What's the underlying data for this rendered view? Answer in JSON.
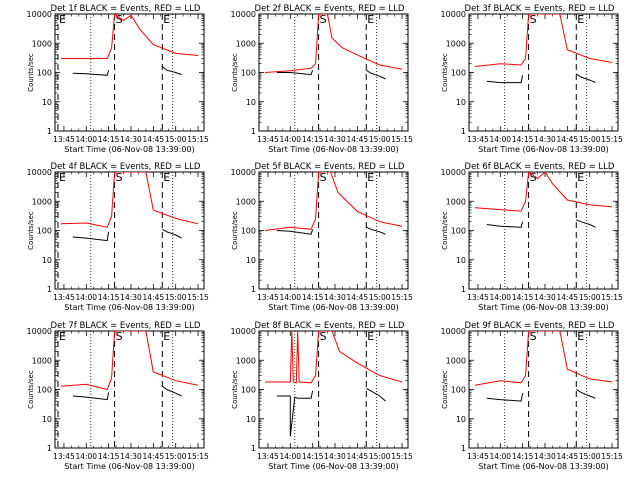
{
  "figure": {
    "background": "#ffffff",
    "event_color": "#000000",
    "lld_color": "#ff0000"
  },
  "chart_data": [
    {
      "type": "line",
      "title": "Det 1f BLACK = Events, RED = LLD",
      "xlabel": "Start Time (06-Nov-08 13:39:00)",
      "ylabel": "Counts/sec",
      "x_ticks": [
        "13:45",
        "14:00",
        "14:15",
        "14:30",
        "14:45",
        "15:00",
        "15:15"
      ],
      "y_ticks": [
        "1",
        "10",
        "100",
        "1000",
        "10000"
      ],
      "ylim": [
        1,
        10000
      ],
      "yscale": "log",
      "markers": [
        {
          "label": "E",
          "x": "13:41",
          "style": "dashed"
        },
        {
          "label": "S",
          "x": "14:19",
          "style": "dashed"
        },
        {
          "label": "E",
          "x": "14:51",
          "style": "dashed"
        }
      ],
      "dotted_lines": [
        "14:03",
        "14:58"
      ],
      "series": [
        {
          "color": "red",
          "x": [
            "13:43",
            "14:00",
            "14:14",
            "14:17",
            "14:19",
            "14:25",
            "14:30",
            "14:36",
            "14:45",
            "15:00",
            "15:15"
          ],
          "values": [
            300,
            300,
            300,
            700,
            10000,
            6000,
            9000,
            3000,
            900,
            450,
            380
          ]
        },
        {
          "color": "black",
          "x": [
            "13:51",
            "14:00",
            "14:14",
            "14:15"
          ],
          "values": [
            95,
            90,
            80,
            120
          ]
        },
        {
          "color": "black",
          "x": [
            "14:51",
            "14:54",
            "15:00",
            "15:04"
          ],
          "values": [
            160,
            120,
            100,
            85
          ]
        }
      ]
    },
    {
      "type": "line",
      "title": "Det 2f BLACK = Events, RED = LLD",
      "xlabel": "Start Time (06-Nov-08 13:39:00)",
      "ylabel": "Counts/sec",
      "x_ticks": [
        "13:45",
        "14:00",
        "14:15",
        "14:30",
        "14:45",
        "15:00",
        "15:15"
      ],
      "y_ticks": [
        "1",
        "10",
        "100",
        "1000",
        "10000"
      ],
      "ylim": [
        1,
        10000
      ],
      "yscale": "log",
      "markers": [
        {
          "label": "S",
          "x": "14:19",
          "style": "dashed"
        },
        {
          "label": "E",
          "x": "14:51",
          "style": "dashed"
        }
      ],
      "dotted_lines": [
        "14:03",
        "14:58"
      ],
      "series": [
        {
          "color": "red",
          "x": [
            "13:43",
            "14:00",
            "14:14",
            "14:17",
            "14:19",
            "14:25",
            "14:28",
            "14:35",
            "14:45",
            "15:00",
            "15:15"
          ],
          "values": [
            100,
            115,
            140,
            200,
            10000,
            10000,
            1500,
            700,
            400,
            180,
            130
          ]
        },
        {
          "color": "black",
          "x": [
            "13:51",
            "14:00",
            "14:14",
            "14:15"
          ],
          "values": [
            100,
            100,
            85,
            120
          ]
        },
        {
          "color": "black",
          "x": [
            "14:51",
            "14:54",
            "15:00",
            "15:04"
          ],
          "values": [
            120,
            95,
            75,
            60
          ]
        }
      ]
    },
    {
      "type": "line",
      "title": "Det 3f BLACK = Events, RED = LLD",
      "xlabel": "Start Time (06-Nov-08 13:39:00)",
      "ylabel": "Counts/sec",
      "x_ticks": [
        "13:45",
        "14:00",
        "14:15",
        "14:30",
        "14:45",
        "15:00",
        "15:15"
      ],
      "y_ticks": [
        "1",
        "10",
        "100",
        "1000",
        "10000"
      ],
      "ylim": [
        1,
        10000
      ],
      "yscale": "log",
      "markers": [
        {
          "label": "S",
          "x": "14:19",
          "style": "dashed"
        },
        {
          "label": "E",
          "x": "14:51",
          "style": "dashed"
        }
      ],
      "dotted_lines": [
        "14:03",
        "14:58"
      ],
      "series": [
        {
          "color": "red",
          "x": [
            "13:43",
            "14:00",
            "14:14",
            "14:17",
            "14:19",
            "14:30",
            "14:40",
            "14:45",
            "15:00",
            "15:15"
          ],
          "values": [
            160,
            200,
            180,
            300,
            10000,
            10000,
            10000,
            600,
            300,
            220
          ]
        },
        {
          "color": "black",
          "x": [
            "13:51",
            "14:00",
            "14:14",
            "14:15"
          ],
          "values": [
            50,
            45,
            45,
            80
          ]
        },
        {
          "color": "black",
          "x": [
            "14:51",
            "14:54",
            "15:00",
            "15:04"
          ],
          "values": [
            90,
            70,
            55,
            45
          ]
        }
      ]
    },
    {
      "type": "line",
      "title": "Det 4f BLACK = Events, RED = LLD",
      "xlabel": "Start Time (06-Nov-08 13:39:00)",
      "ylabel": "Counts/sec",
      "x_ticks": [
        "13:45",
        "14:00",
        "14:15",
        "14:30",
        "14:45",
        "15:00",
        "15:15"
      ],
      "y_ticks": [
        "1",
        "10",
        "100",
        "1000",
        "10000"
      ],
      "ylim": [
        1,
        10000
      ],
      "yscale": "log",
      "markers": [
        {
          "label": "E",
          "x": "13:41",
          "style": "dashed"
        },
        {
          "label": "S",
          "x": "14:19",
          "style": "dashed"
        },
        {
          "label": "E",
          "x": "14:51",
          "style": "dashed"
        }
      ],
      "dotted_lines": [
        "14:03",
        "14:58"
      ],
      "series": [
        {
          "color": "red",
          "x": [
            "13:43",
            "14:00",
            "14:14",
            "14:17",
            "14:19",
            "14:30",
            "14:40",
            "14:45",
            "15:00",
            "15:15"
          ],
          "values": [
            170,
            180,
            130,
            300,
            10000,
            10000,
            10000,
            500,
            260,
            170
          ]
        },
        {
          "color": "black",
          "x": [
            "13:51",
            "14:00",
            "14:14",
            "14:15"
          ],
          "values": [
            60,
            55,
            45,
            90
          ]
        },
        {
          "color": "black",
          "x": [
            "14:51",
            "14:54",
            "15:00",
            "15:04"
          ],
          "values": [
            110,
            90,
            70,
            55
          ]
        }
      ]
    },
    {
      "type": "line",
      "title": "Det 5f BLACK = Events, RED = LLD",
      "xlabel": "Start Time (06-Nov-08 13:39:00)",
      "ylabel": "Counts/sec",
      "x_ticks": [
        "13:45",
        "14:00",
        "14:15",
        "14:30",
        "14:45",
        "15:00",
        "15:15"
      ],
      "y_ticks": [
        "1",
        "10",
        "100",
        "1000",
        "10000"
      ],
      "ylim": [
        1,
        10000
      ],
      "yscale": "log",
      "markers": [
        {
          "label": "S",
          "x": "14:19",
          "style": "dashed"
        },
        {
          "label": "E",
          "x": "14:51",
          "style": "dashed"
        }
      ],
      "dotted_lines": [
        "14:03",
        "14:58"
      ],
      "series": [
        {
          "color": "red",
          "x": [
            "13:43",
            "14:00",
            "14:14",
            "14:17",
            "14:19",
            "14:27",
            "14:32",
            "14:40",
            "14:45",
            "15:00",
            "15:15"
          ],
          "values": [
            100,
            130,
            110,
            250,
            10000,
            10000,
            2000,
            800,
            450,
            200,
            140
          ]
        },
        {
          "color": "black",
          "x": [
            "13:51",
            "14:00",
            "14:14",
            "14:15"
          ],
          "values": [
            100,
            95,
            75,
            110
          ]
        },
        {
          "color": "black",
          "x": [
            "14:51",
            "14:54",
            "15:00",
            "15:04"
          ],
          "values": [
            130,
            110,
            90,
            75
          ]
        }
      ]
    },
    {
      "type": "line",
      "title": "Det 6f BLACK = Events, RED = LLD",
      "xlabel": "Start Time (06-Nov-08 13:39:00)",
      "ylabel": "Counts/sec",
      "x_ticks": [
        "13:45",
        "14:00",
        "14:15",
        "14:30",
        "14:45",
        "15:00",
        "15:15"
      ],
      "y_ticks": [
        "1",
        "10",
        "100",
        "1000",
        "10000"
      ],
      "ylim": [
        1,
        10000
      ],
      "yscale": "log",
      "markers": [
        {
          "label": "S",
          "x": "14:19",
          "style": "dashed"
        },
        {
          "label": "E",
          "x": "14:51",
          "style": "dashed"
        }
      ],
      "dotted_lines": [
        "14:03",
        "14:58"
      ],
      "series": [
        {
          "color": "red",
          "x": [
            "13:43",
            "14:00",
            "14:14",
            "14:17",
            "14:19",
            "14:25",
            "14:30",
            "14:35",
            "14:45",
            "15:00",
            "15:15"
          ],
          "values": [
            600,
            520,
            460,
            1000,
            10000,
            6000,
            10000,
            4000,
            1100,
            750,
            650
          ]
        },
        {
          "color": "black",
          "x": [
            "13:51",
            "14:00",
            "14:14",
            "14:15"
          ],
          "values": [
            160,
            140,
            130,
            200
          ]
        },
        {
          "color": "black",
          "x": [
            "14:51",
            "14:54",
            "15:00",
            "15:04"
          ],
          "values": [
            230,
            200,
            160,
            130
          ]
        }
      ]
    },
    {
      "type": "line",
      "title": "Det 7f BLACK = Events, RED = LLD",
      "xlabel": "Start Time (06-Nov-08 13:39:00)",
      "ylabel": "Counts/sec",
      "x_ticks": [
        "13:45",
        "14:00",
        "14:15",
        "14:30",
        "14:45",
        "15:00",
        "15:15"
      ],
      "y_ticks": [
        "1",
        "10",
        "100",
        "1000",
        "10000"
      ],
      "ylim": [
        1,
        10000
      ],
      "yscale": "log",
      "markers": [
        {
          "label": "E",
          "x": "13:41",
          "style": "dashed"
        },
        {
          "label": "S",
          "x": "14:19",
          "style": "dashed"
        },
        {
          "label": "E",
          "x": "14:51",
          "style": "dashed"
        }
      ],
      "dotted_lines": [
        "14:03",
        "14:58"
      ],
      "series": [
        {
          "color": "red",
          "x": [
            "13:43",
            "14:00",
            "14:14",
            "14:17",
            "14:19",
            "14:30",
            "14:40",
            "14:45",
            "15:00",
            "15:15"
          ],
          "values": [
            130,
            150,
            100,
            250,
            10000,
            10000,
            10000,
            400,
            200,
            140
          ]
        },
        {
          "color": "black",
          "x": [
            "13:51",
            "14:00",
            "14:14",
            "14:15"
          ],
          "values": [
            60,
            55,
            45,
            80
          ]
        },
        {
          "color": "black",
          "x": [
            "14:51",
            "14:54",
            "15:00",
            "15:04"
          ],
          "values": [
            130,
            100,
            75,
            60
          ]
        }
      ]
    },
    {
      "type": "line",
      "title": "Det 8f BLACK = Events, RED = LLD",
      "xlabel": "Start Time (06-Nov-08 13:39:00)",
      "ylabel": "Counts/sec",
      "x_ticks": [
        "13:45",
        "14:00",
        "14:15",
        "14:30",
        "14:45",
        "15:00",
        "15:15"
      ],
      "y_ticks": [
        "1",
        "10",
        "100",
        "1000",
        "10000"
      ],
      "ylim": [
        1,
        10000
      ],
      "yscale": "log",
      "markers": [
        {
          "label": "S",
          "x": "14:19",
          "style": "dashed"
        },
        {
          "label": "E",
          "x": "14:51",
          "style": "dashed"
        }
      ],
      "dotted_lines": [
        "14:03",
        "14:58"
      ],
      "series": [
        {
          "color": "red",
          "x": [
            "13:43",
            "14:00",
            "14:01",
            "14:02",
            "14:04",
            "14:05",
            "14:06",
            "14:14",
            "14:17",
            "14:19",
            "14:28",
            "14:33",
            "14:45",
            "15:00",
            "15:15"
          ],
          "values": [
            180,
            180,
            10000,
            180,
            170,
            10000,
            180,
            170,
            300,
            10000,
            10000,
            2000,
            800,
            300,
            180
          ]
        },
        {
          "color": "black",
          "x": [
            "13:51",
            "13:58",
            "14:00",
            "14:00",
            "14:03",
            "14:05",
            "14:14",
            "14:15"
          ],
          "values": [
            60,
            60,
            60,
            2.5,
            55,
            50,
            50,
            90
          ]
        },
        {
          "color": "black",
          "x": [
            "14:51",
            "14:54",
            "15:00",
            "15:04"
          ],
          "values": [
            110,
            90,
            60,
            40
          ]
        }
      ]
    },
    {
      "type": "line",
      "title": "Det 9f BLACK = Events, RED = LLD",
      "xlabel": "Start Time (06-Nov-08 13:39:00)",
      "ylabel": "Counts/sec",
      "x_ticks": [
        "13:45",
        "14:00",
        "14:15",
        "14:30",
        "14:45",
        "15:00",
        "15:15"
      ],
      "y_ticks": [
        "1",
        "10",
        "100",
        "1000",
        "10000"
      ],
      "ylim": [
        1,
        10000
      ],
      "yscale": "log",
      "markers": [
        {
          "label": "S",
          "x": "14:19",
          "style": "dashed"
        },
        {
          "label": "E",
          "x": "14:51",
          "style": "dashed"
        }
      ],
      "dotted_lines": [
        "14:03",
        "14:58"
      ],
      "series": [
        {
          "color": "red",
          "x": [
            "13:43",
            "14:00",
            "14:14",
            "14:17",
            "14:19",
            "14:30",
            "14:40",
            "14:45",
            "15:00",
            "15:15"
          ],
          "values": [
            140,
            200,
            170,
            300,
            10000,
            10000,
            10000,
            500,
            230,
            180
          ]
        },
        {
          "color": "black",
          "x": [
            "13:51",
            "14:00",
            "14:14",
            "14:15"
          ],
          "values": [
            50,
            45,
            40,
            75
          ]
        },
        {
          "color": "black",
          "x": [
            "14:51",
            "14:54",
            "15:00",
            "15:04"
          ],
          "values": [
            100,
            80,
            60,
            50
          ]
        }
      ]
    }
  ]
}
